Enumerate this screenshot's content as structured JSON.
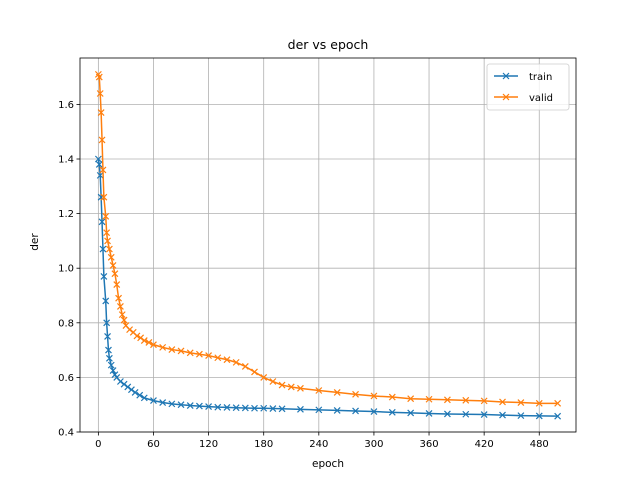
{
  "chart_data": {
    "type": "line",
    "title": "der vs epoch",
    "xlabel": "epoch",
    "ylabel": "der",
    "xlim": [
      -20,
      520
    ],
    "ylim": [
      0.4,
      1.77
    ],
    "xticks": [
      0,
      60,
      120,
      180,
      240,
      300,
      360,
      420,
      480
    ],
    "yticks": [
      0.4,
      0.6,
      0.8,
      1.0,
      1.2,
      1.4,
      1.6
    ],
    "ytick_labels": [
      "0.4",
      "0.6",
      "0.8",
      "1.0",
      "1.2",
      "1.4",
      "1.6"
    ],
    "grid": true,
    "legend_position": "top-right",
    "marker": "x",
    "series": [
      {
        "name": "train",
        "color": "#1f77b4",
        "points": [
          [
            0,
            1.4
          ],
          [
            1,
            1.38
          ],
          [
            2,
            1.34
          ],
          [
            3,
            1.26
          ],
          [
            4,
            1.17
          ],
          [
            5,
            1.07
          ],
          [
            6,
            0.97
          ],
          [
            8,
            0.88
          ],
          [
            9,
            0.8
          ],
          [
            10,
            0.75
          ],
          [
            11,
            0.7
          ],
          [
            12,
            0.67
          ],
          [
            14,
            0.645
          ],
          [
            16,
            0.625
          ],
          [
            18,
            0.61
          ],
          [
            20,
            0.6
          ],
          [
            24,
            0.585
          ],
          [
            28,
            0.575
          ],
          [
            32,
            0.565
          ],
          [
            36,
            0.555
          ],
          [
            40,
            0.545
          ],
          [
            45,
            0.535
          ],
          [
            50,
            0.525
          ],
          [
            60,
            0.515
          ],
          [
            70,
            0.508
          ],
          [
            80,
            0.503
          ],
          [
            90,
            0.5
          ],
          [
            100,
            0.497
          ],
          [
            110,
            0.495
          ],
          [
            120,
            0.493
          ],
          [
            130,
            0.491
          ],
          [
            140,
            0.49
          ],
          [
            150,
            0.489
          ],
          [
            160,
            0.488
          ],
          [
            170,
            0.487
          ],
          [
            180,
            0.487
          ],
          [
            190,
            0.486
          ],
          [
            200,
            0.485
          ],
          [
            220,
            0.483
          ],
          [
            240,
            0.481
          ],
          [
            260,
            0.479
          ],
          [
            280,
            0.477
          ],
          [
            300,
            0.475
          ],
          [
            320,
            0.472
          ],
          [
            340,
            0.47
          ],
          [
            360,
            0.468
          ],
          [
            380,
            0.466
          ],
          [
            400,
            0.465
          ],
          [
            420,
            0.464
          ],
          [
            440,
            0.462
          ],
          [
            460,
            0.46
          ],
          [
            480,
            0.459
          ],
          [
            500,
            0.458
          ]
        ]
      },
      {
        "name": "valid",
        "color": "#ff7f0e",
        "points": [
          [
            0,
            1.71
          ],
          [
            1,
            1.7
          ],
          [
            2,
            1.64
          ],
          [
            3,
            1.57
          ],
          [
            4,
            1.47
          ],
          [
            5,
            1.36
          ],
          [
            6,
            1.26
          ],
          [
            8,
            1.19
          ],
          [
            9,
            1.13
          ],
          [
            10,
            1.1
          ],
          [
            12,
            1.07
          ],
          [
            14,
            1.04
          ],
          [
            16,
            1.01
          ],
          [
            18,
            0.98
          ],
          [
            20,
            0.94
          ],
          [
            22,
            0.89
          ],
          [
            24,
            0.86
          ],
          [
            26,
            0.83
          ],
          [
            28,
            0.81
          ],
          [
            30,
            0.79
          ],
          [
            34,
            0.775
          ],
          [
            38,
            0.765
          ],
          [
            42,
            0.752
          ],
          [
            46,
            0.745
          ],
          [
            50,
            0.735
          ],
          [
            55,
            0.728
          ],
          [
            60,
            0.72
          ],
          [
            70,
            0.71
          ],
          [
            80,
            0.702
          ],
          [
            90,
            0.697
          ],
          [
            100,
            0.69
          ],
          [
            110,
            0.685
          ],
          [
            120,
            0.68
          ],
          [
            130,
            0.672
          ],
          [
            140,
            0.665
          ],
          [
            150,
            0.655
          ],
          [
            160,
            0.64
          ],
          [
            170,
            0.62
          ],
          [
            180,
            0.6
          ],
          [
            190,
            0.585
          ],
          [
            200,
            0.572
          ],
          [
            210,
            0.565
          ],
          [
            220,
            0.56
          ],
          [
            240,
            0.552
          ],
          [
            260,
            0.545
          ],
          [
            280,
            0.538
          ],
          [
            300,
            0.532
          ],
          [
            320,
            0.528
          ],
          [
            340,
            0.522
          ],
          [
            360,
            0.52
          ],
          [
            380,
            0.518
          ],
          [
            400,
            0.516
          ],
          [
            420,
            0.514
          ],
          [
            440,
            0.51
          ],
          [
            460,
            0.508
          ],
          [
            480,
            0.505
          ],
          [
            500,
            0.505
          ]
        ]
      }
    ]
  }
}
